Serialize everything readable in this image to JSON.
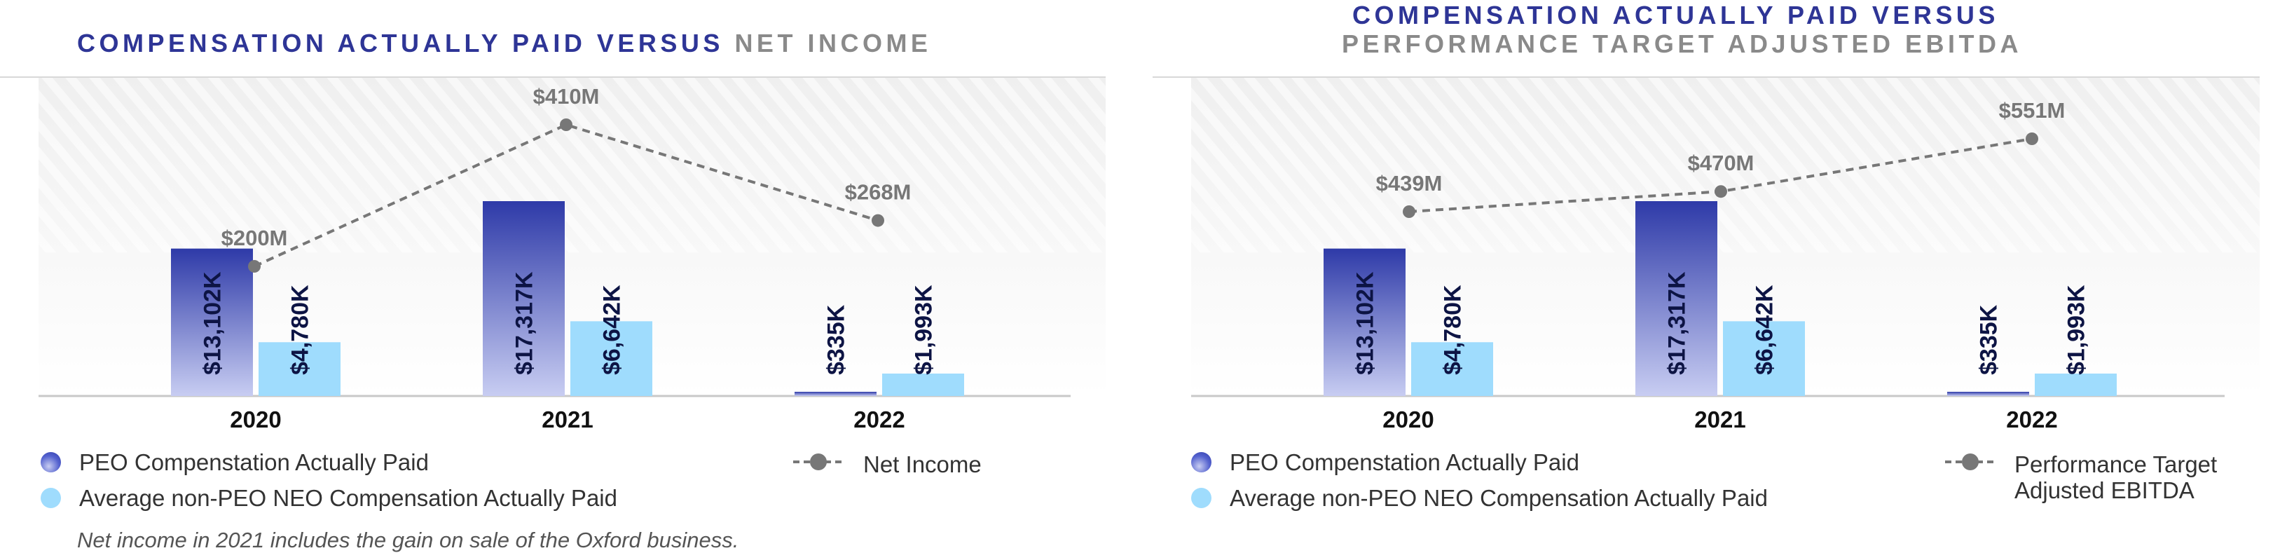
{
  "left_title": {
    "blue": "COMPENSATION ACTUALLY PAID VERSUS",
    "gray": "NET INCOME"
  },
  "right_title": {
    "blue": "COMPENSATION ACTUALLY PAID VERSUS",
    "gray": "PERFORMANCE TARGET ADJUSTED EBITDA"
  },
  "legend": {
    "peo": "PEO Compenstation Actually Paid",
    "neo": "Average non-PEO NEO Compensation Actually Paid",
    "left_line": "Net Income",
    "right_line_1": "Performance Target",
    "right_line_2": "Adjusted EBITDA"
  },
  "footnote": "Net income in 2021 includes the gain on sale of the Oxford business.",
  "colors": {
    "peo_top": "#2e3aa8",
    "peo_bottom": "#c8cdf2",
    "neo": "#9fdcfd",
    "line": "#777777",
    "title_blue": "#2e3596",
    "title_gray": "#8a8a8a"
  },
  "chart_data": [
    {
      "type": "bar",
      "categories": [
        "2020",
        "2021",
        "2022"
      ],
      "series": [
        {
          "name": "PEO Compenstation Actually Paid",
          "values": [
            13102,
            17317,
            335
          ],
          "labels": [
            "$13,102K",
            "$17,317K",
            "$335K"
          ]
        },
        {
          "name": "Average non-PEO NEO Compensation Actually Paid",
          "values": [
            4780,
            6642,
            1993
          ],
          "labels": [
            "$4,780K",
            "$6,642K",
            "$1,993K"
          ]
        }
      ],
      "line_series": {
        "name": "Net Income",
        "values": [
          200,
          410,
          268
        ],
        "labels": [
          "$200M",
          "$410M",
          "$268M"
        ]
      },
      "title": "COMPENSATION ACTUALLY PAID VERSUS NET INCOME"
    },
    {
      "type": "bar",
      "categories": [
        "2020",
        "2021",
        "2022"
      ],
      "series": [
        {
          "name": "PEO Compenstation Actually Paid",
          "values": [
            13102,
            17317,
            335
          ],
          "labels": [
            "$13,102K",
            "$17,317K",
            "$335K"
          ]
        },
        {
          "name": "Average non-PEO NEO Compensation Actually Paid",
          "values": [
            4780,
            6642,
            1993
          ],
          "labels": [
            "$4,780K",
            "$6,642K",
            "$1,993K"
          ]
        }
      ],
      "line_series": {
        "name": "Performance Target Adjusted EBITDA",
        "values": [
          439,
          470,
          551
        ],
        "labels": [
          "$439M",
          "$470M",
          "$551M"
        ]
      },
      "title": "COMPENSATION ACTUALLY PAID VERSUS PERFORMANCE TARGET ADJUSTED EBITDA"
    }
  ]
}
